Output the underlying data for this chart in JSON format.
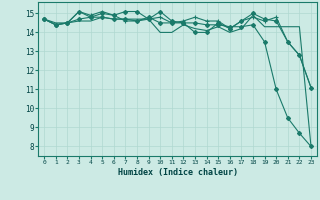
{
  "xlabel": "Humidex (Indice chaleur)",
  "ylabel": "",
  "background_color": "#cceae4",
  "grid_color": "#b0d8d0",
  "line_color": "#1a7a6a",
  "xlim": [
    -0.5,
    23.5
  ],
  "ylim": [
    7.5,
    15.6
  ],
  "yticks": [
    8,
    9,
    10,
    11,
    12,
    13,
    14,
    15
  ],
  "xticks": [
    0,
    1,
    2,
    3,
    4,
    5,
    6,
    7,
    8,
    9,
    10,
    11,
    12,
    13,
    14,
    15,
    16,
    17,
    18,
    19,
    20,
    21,
    22,
    23
  ],
  "series": [
    {
      "x": [
        0,
        1,
        2,
        3,
        4,
        5,
        6,
        7,
        8,
        9,
        10,
        11,
        12,
        13,
        14,
        15,
        16,
        17,
        18,
        19,
        20,
        21,
        22,
        23
      ],
      "y": [
        14.7,
        14.5,
        14.5,
        14.6,
        14.6,
        14.8,
        14.7,
        14.7,
        14.7,
        14.7,
        14.0,
        14.0,
        14.4,
        14.2,
        14.1,
        14.3,
        14.0,
        14.2,
        14.9,
        14.3,
        14.3,
        14.3,
        14.3,
        8.0
      ],
      "marker": null,
      "lw": 0.8
    },
    {
      "x": [
        0,
        1,
        2,
        3,
        4,
        5,
        6,
        7,
        8,
        9,
        10,
        11,
        12,
        13,
        14,
        15,
        16,
        17,
        18,
        19,
        20,
        21,
        22,
        23
      ],
      "y": [
        14.7,
        14.4,
        14.5,
        15.1,
        14.8,
        15.0,
        14.9,
        15.1,
        15.1,
        14.7,
        15.1,
        14.6,
        14.5,
        14.0,
        14.0,
        14.5,
        14.2,
        14.6,
        15.0,
        14.7,
        14.6,
        13.5,
        12.8,
        11.1
      ],
      "marker": "D",
      "lw": 0.8
    },
    {
      "x": [
        0,
        1,
        2,
        3,
        4,
        5,
        6,
        7,
        8,
        9,
        10,
        11,
        12,
        13,
        14,
        15,
        16,
        17,
        18,
        19,
        20,
        21,
        22,
        23
      ],
      "y": [
        14.7,
        14.4,
        14.5,
        15.1,
        14.9,
        15.1,
        14.9,
        14.6,
        14.6,
        14.7,
        14.8,
        14.5,
        14.6,
        14.8,
        14.6,
        14.6,
        14.2,
        14.6,
        14.8,
        14.6,
        14.8,
        13.5,
        12.8,
        11.1
      ],
      "marker": "+",
      "lw": 0.8
    },
    {
      "x": [
        0,
        1,
        2,
        3,
        4,
        5,
        6,
        7,
        8,
        9,
        10,
        11,
        12,
        13,
        14,
        15,
        16,
        17,
        18,
        19,
        20,
        21,
        22,
        23
      ],
      "y": [
        14.7,
        14.4,
        14.5,
        14.7,
        14.8,
        14.8,
        14.7,
        14.7,
        14.6,
        14.8,
        14.5,
        14.5,
        14.5,
        14.5,
        14.4,
        14.4,
        14.3,
        14.3,
        14.4,
        13.5,
        11.0,
        9.5,
        8.7,
        8.0
      ],
      "marker": "D",
      "lw": 0.8
    }
  ]
}
